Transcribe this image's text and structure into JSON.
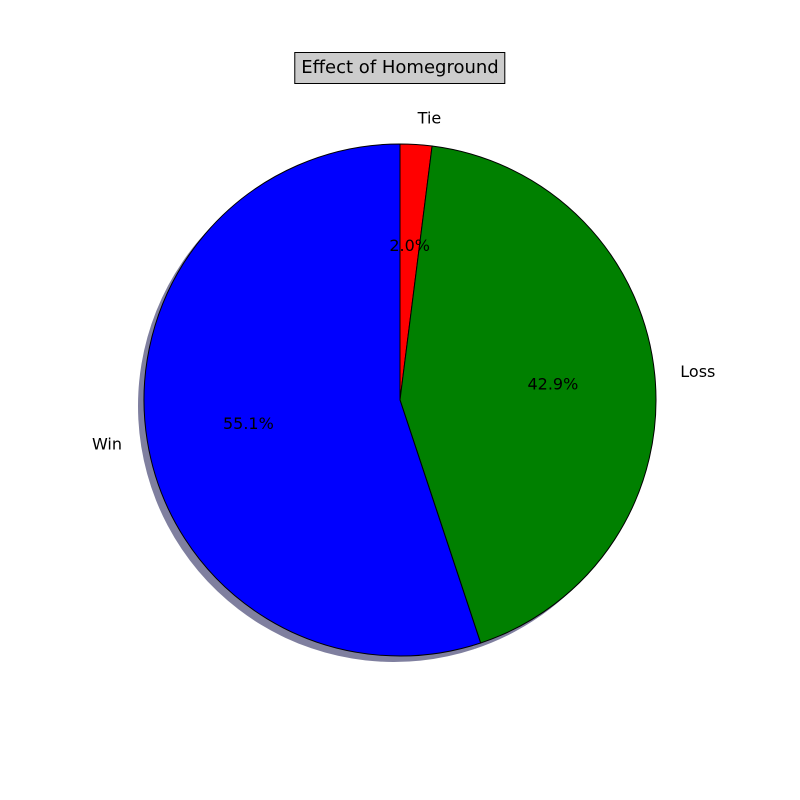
{
  "chart_data": {
    "type": "pie",
    "title": "Effect of Homeground",
    "labels": [
      "Tie",
      "Loss",
      "Win"
    ],
    "values": [
      2.0,
      42.9,
      55.1
    ],
    "pct_labels": [
      "2.0%",
      "42.9%",
      "55.1%"
    ],
    "colors": [
      "#ff0000",
      "#008000",
      "#0000ff"
    ],
    "start_angle_deg": 90,
    "direction": "clockwise",
    "shadow": true,
    "shadow_color": "#7f7f9f"
  }
}
